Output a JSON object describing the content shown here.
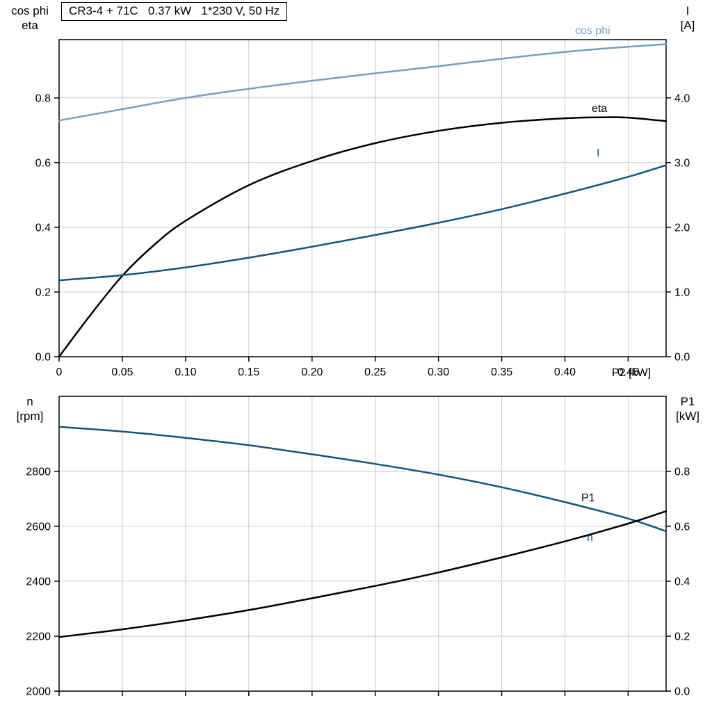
{
  "title_box": "CR3-4 + 71C   0.37 kW   1*230 V, 50 Hz",
  "colors": {
    "cos_phi": "#7c9dc0",
    "dark_blue": "#15537d",
    "black": "#000000",
    "grid": "#c9c9c9"
  },
  "chart_data": [
    {
      "type": "line",
      "title": "CR3-4 + 71C   0.37 kW   1*230 V, 50 Hz",
      "grid": true,
      "x": {
        "label": "P2 [kW]",
        "min": 0,
        "max": 0.48,
        "ticks": [
          0,
          0.05,
          0.1,
          0.15,
          0.2,
          0.25,
          0.3,
          0.35,
          0.4,
          0.45
        ],
        "tick_labels": [
          "0",
          "0.05",
          "0.10",
          "0.15",
          "0.20",
          "0.25",
          "0.30",
          "0.35",
          "0.40",
          "0.45"
        ]
      },
      "y_left": {
        "label": "cos phi / eta",
        "title_lines": [
          "cos phi",
          "eta"
        ],
        "min": 0,
        "max": 0.98,
        "ticks": [
          0,
          0.2,
          0.4,
          0.6,
          0.8
        ],
        "tick_labels": [
          "0.0",
          "0.2",
          "0.4",
          "0.6",
          "0.8"
        ]
      },
      "y_right": {
        "label": "I [A]",
        "title_lines": [
          "I",
          "[A]"
        ],
        "min": 0,
        "max": 4.9,
        "ticks": [
          0,
          1,
          2,
          3,
          4
        ],
        "tick_labels": [
          "0.0",
          "1.0",
          "2.0",
          "3.0",
          "4.0"
        ]
      },
      "series": [
        {
          "name": "cos phi",
          "axis": "left",
          "color": "#7c9dc0",
          "x": [
            0,
            0.05,
            0.1,
            0.15,
            0.2,
            0.25,
            0.3,
            0.35,
            0.4,
            0.45,
            0.48
          ],
          "y": [
            0.73,
            0.765,
            0.8,
            0.828,
            0.853,
            0.876,
            0.898,
            0.921,
            0.942,
            0.958,
            0.966
          ]
        },
        {
          "name": "eta",
          "axis": "left",
          "color": "#000000",
          "x": [
            0,
            0.025,
            0.05,
            0.075,
            0.1,
            0.15,
            0.2,
            0.25,
            0.3,
            0.35,
            0.4,
            0.43,
            0.45,
            0.48
          ],
          "y": [
            0,
            0.13,
            0.25,
            0.345,
            0.42,
            0.53,
            0.605,
            0.66,
            0.698,
            0.723,
            0.737,
            0.74,
            0.739,
            0.728
          ]
        },
        {
          "name": "I",
          "axis": "right",
          "color": "#15537d",
          "x": [
            0,
            0.05,
            0.1,
            0.15,
            0.2,
            0.25,
            0.3,
            0.35,
            0.4,
            0.45,
            0.48
          ],
          "y": [
            1.18,
            1.26,
            1.38,
            1.53,
            1.7,
            1.88,
            2.07,
            2.28,
            2.52,
            2.78,
            2.96
          ]
        }
      ]
    },
    {
      "type": "line",
      "title": "",
      "grid": true,
      "x": {
        "label": "",
        "min": 0,
        "max": 0.48,
        "ticks": [
          0,
          0.05,
          0.1,
          0.15,
          0.2,
          0.25,
          0.3,
          0.35,
          0.4,
          0.45
        ],
        "tick_labels": []
      },
      "y_left": {
        "label": "n [rpm]",
        "title_lines": [
          "n",
          "[rpm]"
        ],
        "min": 2000,
        "max": 3073,
        "ticks": [
          2000,
          2200,
          2400,
          2600,
          2800
        ],
        "tick_labels": [
          "2000",
          "2200",
          "2400",
          "2600",
          "2800"
        ]
      },
      "y_right": {
        "label": "P1 [kW]",
        "title_lines": [
          "P1",
          "[kW]"
        ],
        "min": 0,
        "max": 1.073,
        "ticks": [
          0,
          0.2,
          0.4,
          0.6,
          0.8
        ],
        "tick_labels": [
          "0.0",
          "0.2",
          "0.4",
          "0.6",
          "0.8"
        ]
      },
      "series": [
        {
          "name": "n",
          "axis": "left",
          "color": "#15537d",
          "x": [
            0,
            0.05,
            0.1,
            0.15,
            0.2,
            0.25,
            0.3,
            0.35,
            0.4,
            0.45,
            0.48
          ],
          "y": [
            2962,
            2945,
            2922,
            2895,
            2862,
            2827,
            2788,
            2742,
            2688,
            2628,
            2582
          ]
        },
        {
          "name": "P1",
          "axis": "right",
          "color": "#000000",
          "x": [
            0,
            0.05,
            0.1,
            0.15,
            0.2,
            0.25,
            0.3,
            0.35,
            0.4,
            0.45,
            0.48
          ],
          "y": [
            0.197,
            0.225,
            0.258,
            0.295,
            0.338,
            0.383,
            0.432,
            0.487,
            0.545,
            0.61,
            0.655
          ]
        }
      ]
    }
  ]
}
